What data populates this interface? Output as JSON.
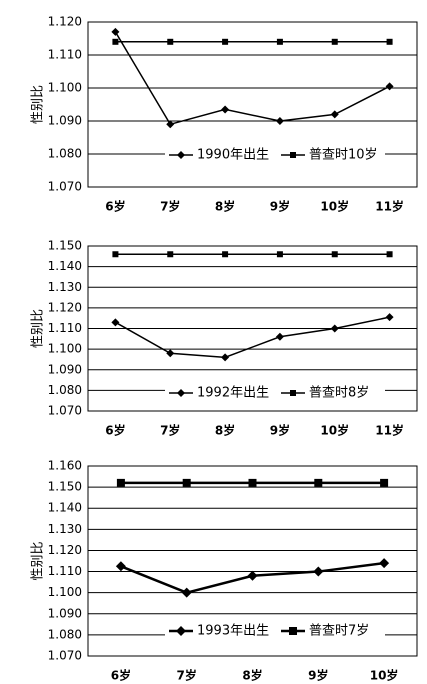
{
  "chart_data": [
    {
      "type": "line",
      "y_label": "性别比",
      "categories": [
        "6岁",
        "7岁",
        "8岁",
        "9岁",
        "10岁",
        "11岁"
      ],
      "series": [
        {
          "name": "1990年出生",
          "color": "#000000",
          "marker": "diamond",
          "values": [
            1.117,
            1.089,
            1.0935,
            1.09,
            1.092,
            1.1005
          ]
        },
        {
          "name": "普查时10岁",
          "color": "#000000",
          "marker": "square",
          "values": [
            1.114,
            1.114,
            1.114,
            1.114,
            1.114,
            1.114
          ]
        }
      ],
      "ylim": [
        1.07,
        1.12
      ],
      "yticks": [
        {
          "value": 1.07,
          "label": "1.070"
        },
        {
          "value": 1.08,
          "label": "1.080"
        },
        {
          "value": 1.09,
          "label": "1.090"
        },
        {
          "value": 1.1,
          "label": "1.100"
        },
        {
          "value": 1.11,
          "label": "1.110"
        },
        {
          "value": 1.12,
          "label": "1.120"
        }
      ],
      "grid": true,
      "line_width": 1.5
    },
    {
      "type": "line",
      "y_label": "性别比",
      "categories": [
        "6岁",
        "7岁",
        "8岁",
        "9岁",
        "10岁",
        "11岁"
      ],
      "series": [
        {
          "name": "1992年出生",
          "color": "#000000",
          "marker": "diamond",
          "values": [
            1.113,
            1.098,
            1.096,
            1.106,
            1.11,
            1.1155
          ]
        },
        {
          "name": "普查时8岁",
          "color": "#000000",
          "marker": "square",
          "values": [
            1.146,
            1.146,
            1.146,
            1.146,
            1.146,
            1.146
          ]
        }
      ],
      "ylim": [
        1.07,
        1.15
      ],
      "yticks": [
        {
          "value": 1.07,
          "label": "1.070"
        },
        {
          "value": 1.08,
          "label": "1.080"
        },
        {
          "value": 1.09,
          "label": "1.090"
        },
        {
          "value": 1.1,
          "label": "1.100"
        },
        {
          "value": 1.11,
          "label": "1.110"
        },
        {
          "value": 1.12,
          "label": "1.120"
        },
        {
          "value": 1.13,
          "label": "1.130"
        },
        {
          "value": 1.14,
          "label": "1.140"
        },
        {
          "value": 1.15,
          "label": "1.150"
        }
      ],
      "grid": true,
      "line_width": 1.5
    },
    {
      "type": "line",
      "y_label": "性别比",
      "categories": [
        "6岁",
        "7岁",
        "8岁",
        "9岁",
        "10岁"
      ],
      "series": [
        {
          "name": "1993年出生",
          "color": "#000000",
          "marker": "diamond",
          "values": [
            1.1125,
            1.1,
            1.108,
            1.11,
            1.114
          ]
        },
        {
          "name": "普查时7岁",
          "color": "#000000",
          "marker": "square",
          "values": [
            1.152,
            1.152,
            1.152,
            1.152,
            1.152
          ]
        }
      ],
      "ylim": [
        1.07,
        1.16
      ],
      "yticks": [
        {
          "value": 1.07,
          "label": "1.070"
        },
        {
          "value": 1.08,
          "label": "1.080"
        },
        {
          "value": 1.09,
          "label": "1.090"
        },
        {
          "value": 1.1,
          "label": "1.100"
        },
        {
          "value": 1.11,
          "label": "1.110"
        },
        {
          "value": 1.12,
          "label": "1.120"
        },
        {
          "value": 1.13,
          "label": "1.130"
        },
        {
          "value": 1.14,
          "label": "1.140"
        },
        {
          "value": 1.15,
          "label": "1.150"
        },
        {
          "value": 1.16,
          "label": "1.160"
        }
      ],
      "grid": true,
      "line_width": 2.5
    }
  ]
}
